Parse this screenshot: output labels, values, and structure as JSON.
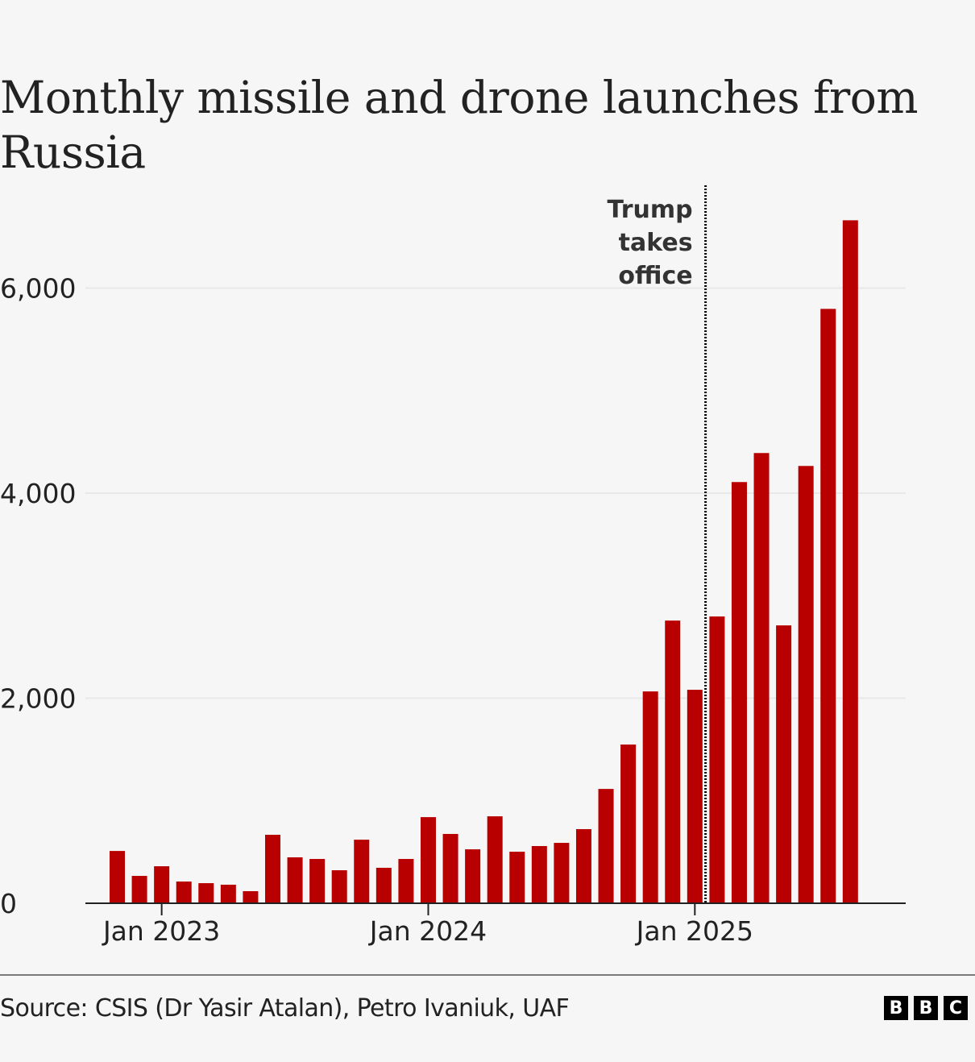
{
  "title": "Monthly missile and drone launches from Russia",
  "source": "Source: CSIS (Dr Yasir Atalan), Petro Ivaniuk, UAF",
  "logo_letters": [
    "B",
    "B",
    "C"
  ],
  "colors": {
    "bar": "#b80000",
    "axis": "#222222",
    "grid": "#e8e8e8",
    "background": "#f6f6f6"
  },
  "chart_data": {
    "type": "bar",
    "title": "Monthly missile and drone launches from Russia",
    "xlabel": "",
    "ylabel": "",
    "ylim": [
      0,
      7000
    ],
    "yticks": [
      0,
      2000,
      4000,
      6000
    ],
    "ytick_labels": [
      "0",
      "2,000",
      "4,000",
      "6,000"
    ],
    "grid": true,
    "xtick_labels": [
      {
        "category": "Jan 2023",
        "label": "Jan 2023"
      },
      {
        "category": "Jan 2024",
        "label": "Jan 2024"
      },
      {
        "category": "Jan 2025",
        "label": "Jan 2025"
      }
    ],
    "categories": [
      "Nov 2022",
      "Dec 2022",
      "Jan 2023",
      "Feb 2023",
      "Mar 2023",
      "Apr 2023",
      "May 2023",
      "Jun 2023",
      "Jul 2023",
      "Aug 2023",
      "Sep 2023",
      "Oct 2023",
      "Nov 2023",
      "Dec 2023",
      "Jan 2024",
      "Feb 2024",
      "Mar 2024",
      "Apr 2024",
      "May 2024",
      "Jun 2024",
      "Jul 2024",
      "Aug 2024",
      "Sep 2024",
      "Oct 2024",
      "Nov 2024",
      "Dec 2024",
      "Jan 2025",
      "Feb 2025",
      "Mar 2025",
      "Apr 2025",
      "May 2025",
      "Jun 2025",
      "Jul 2025",
      "Aug 2025"
    ],
    "values": [
      510,
      267,
      361,
      212,
      196,
      181,
      118,
      668,
      448,
      432,
      322,
      620,
      346,
      432,
      840,
      676,
      526,
      848,
      503,
      558,
      589,
      723,
      1115,
      1548,
      2066,
      2757,
      2082,
      2797,
      4108,
      4391,
      2710,
      4265,
      5797,
      6661
    ],
    "annotations": [
      {
        "type": "vertical-dotted-line",
        "between": [
          "Jan 2025",
          "Feb 2025"
        ],
        "text_lines": [
          "Trump",
          "takes",
          "office"
        ]
      }
    ]
  }
}
